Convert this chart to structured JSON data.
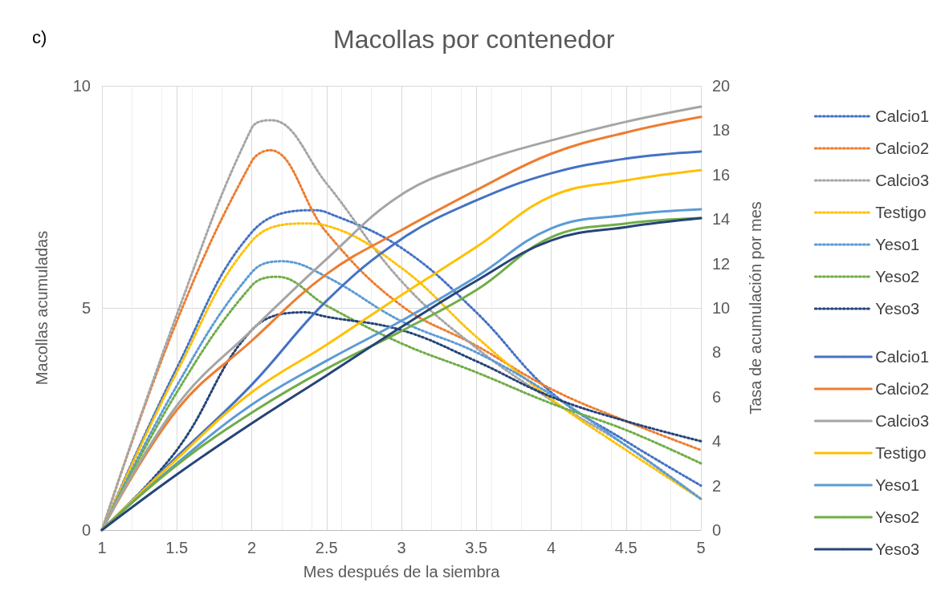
{
  "chart_data": {
    "type": "line",
    "title": "Macollas por contenedor",
    "xlabel": "Mes después de la siembra",
    "ylabel": "Macollas acumuladas",
    "y2label": "Tasa de acumulación por mes",
    "annotations": [
      "c)"
    ],
    "x": [
      1,
      1.5,
      2,
      2.5,
      3,
      3.5,
      4,
      4.5,
      5
    ],
    "xlim": [
      1,
      5
    ],
    "xticks": [
      1,
      1.5,
      2,
      2.5,
      3,
      3.5,
      4,
      4.5,
      5
    ],
    "ylim": [
      0,
      10
    ],
    "yticks": [
      0,
      5,
      10
    ],
    "y2lim": [
      0,
      20
    ],
    "y2ticks": [
      0,
      2,
      4,
      6,
      8,
      10,
      12,
      14,
      16,
      18,
      20
    ],
    "grid": true,
    "legend": "right",
    "marker": "none",
    "series": [
      {
        "name": "Calcio1",
        "color": "#4472c4",
        "axis": "y2",
        "line_style": "dotted",
        "x": [
          1,
          1.5,
          2,
          2.4,
          2.5,
          3,
          3.5,
          4,
          4.5,
          5
        ],
        "values": [
          0,
          7.3,
          13.4,
          14.4,
          14.3,
          12.7,
          9.8,
          6.2,
          4.0,
          2.0
        ]
      },
      {
        "name": "Calcio2",
        "color": "#ed7d31",
        "axis": "y2",
        "line_style": "dotted",
        "x": [
          1,
          1.5,
          2,
          2.12,
          2.5,
          3,
          3.5,
          4,
          4.5,
          5
        ],
        "values": [
          0,
          9.4,
          16.6,
          17.1,
          13.4,
          10.1,
          8.3,
          6.35,
          4.9,
          3.6
        ]
      },
      {
        "name": "Calcio3",
        "color": "#a5a5a5",
        "axis": "y2",
        "line_style": "dotted",
        "x": [
          1,
          1.5,
          2,
          2.13,
          2.5,
          3,
          3.5,
          4,
          4.5,
          5
        ],
        "values": [
          0,
          9.7,
          18.1,
          18.45,
          15.6,
          11.2,
          8.2,
          5.85,
          3.8,
          1.4
        ]
      },
      {
        "name": "Testigo",
        "color": "#ffc000",
        "axis": "y2",
        "line_style": "dotted",
        "x": [
          1,
          1.5,
          2,
          2.35,
          2.5,
          3,
          3.5,
          4,
          4.5,
          5
        ],
        "values": [
          0,
          7.1,
          13.0,
          13.8,
          13.7,
          11.8,
          8.7,
          5.9,
          3.6,
          1.4
        ]
      },
      {
        "name": "Yeso1",
        "color": "#5b9bd5",
        "axis": "y2",
        "line_style": "dotted",
        "x": [
          1,
          1.5,
          2,
          2.2,
          2.5,
          3,
          3.5,
          4,
          4.5,
          5
        ],
        "values": [
          0,
          6.5,
          11.6,
          12.1,
          11.4,
          9.4,
          8.0,
          6.1,
          3.8,
          1.4
        ]
      },
      {
        "name": "Yeso2",
        "color": "#70ad47",
        "axis": "y2",
        "line_style": "dotted",
        "x": [
          1,
          1.5,
          2,
          2.17,
          2.5,
          3,
          3.5,
          4,
          4.5,
          5
        ],
        "values": [
          0,
          6.2,
          11.0,
          11.4,
          10.1,
          8.4,
          7.1,
          5.7,
          4.5,
          3.0
        ]
      },
      {
        "name": "Yeso3",
        "color": "#264478",
        "axis": "y2",
        "line_style": "dotted",
        "x": [
          1,
          1.5,
          2,
          2.35,
          2.5,
          3,
          3.5,
          4,
          4.5,
          5
        ],
        "values": [
          0,
          3.6,
          9.0,
          9.8,
          9.6,
          9.0,
          7.6,
          6.0,
          4.9,
          4.0
        ]
      },
      {
        "name": "Calcio1",
        "color": "#4472c4",
        "line_style": "solid",
        "values": [
          0,
          1.65,
          3.27,
          5.16,
          6.55,
          7.42,
          8.03,
          8.36,
          8.52
        ]
      },
      {
        "name": "Calcio2",
        "color": "#ed7d31",
        "line_style": "solid",
        "values": [
          0,
          2.7,
          4.26,
          5.76,
          6.75,
          7.65,
          8.47,
          8.95,
          9.3
        ]
      },
      {
        "name": "Calcio3",
        "color": "#a5a5a5",
        "line_style": "solid",
        "values": [
          0,
          2.8,
          4.5,
          6.1,
          7.55,
          8.27,
          8.77,
          9.19,
          9.53
        ]
      },
      {
        "name": "Testigo",
        "color": "#ffc000",
        "line_style": "solid",
        "values": [
          0,
          1.6,
          3.1,
          4.17,
          5.29,
          6.37,
          7.51,
          7.87,
          8.1
        ]
      },
      {
        "name": "Yeso1",
        "color": "#5b9bd5",
        "line_style": "solid",
        "values": [
          0,
          1.5,
          2.82,
          3.81,
          4.71,
          5.7,
          6.79,
          7.09,
          7.22
        ]
      },
      {
        "name": "Yeso2",
        "color": "#70ad47",
        "line_style": "solid",
        "values": [
          0,
          1.46,
          2.64,
          3.63,
          4.48,
          5.4,
          6.59,
          6.9,
          7.02
        ]
      },
      {
        "name": "Yeso3",
        "color": "#264478",
        "line_style": "solid",
        "values": [
          0,
          1.25,
          2.4,
          3.48,
          4.57,
          5.61,
          6.52,
          6.82,
          7.02
        ]
      }
    ]
  }
}
